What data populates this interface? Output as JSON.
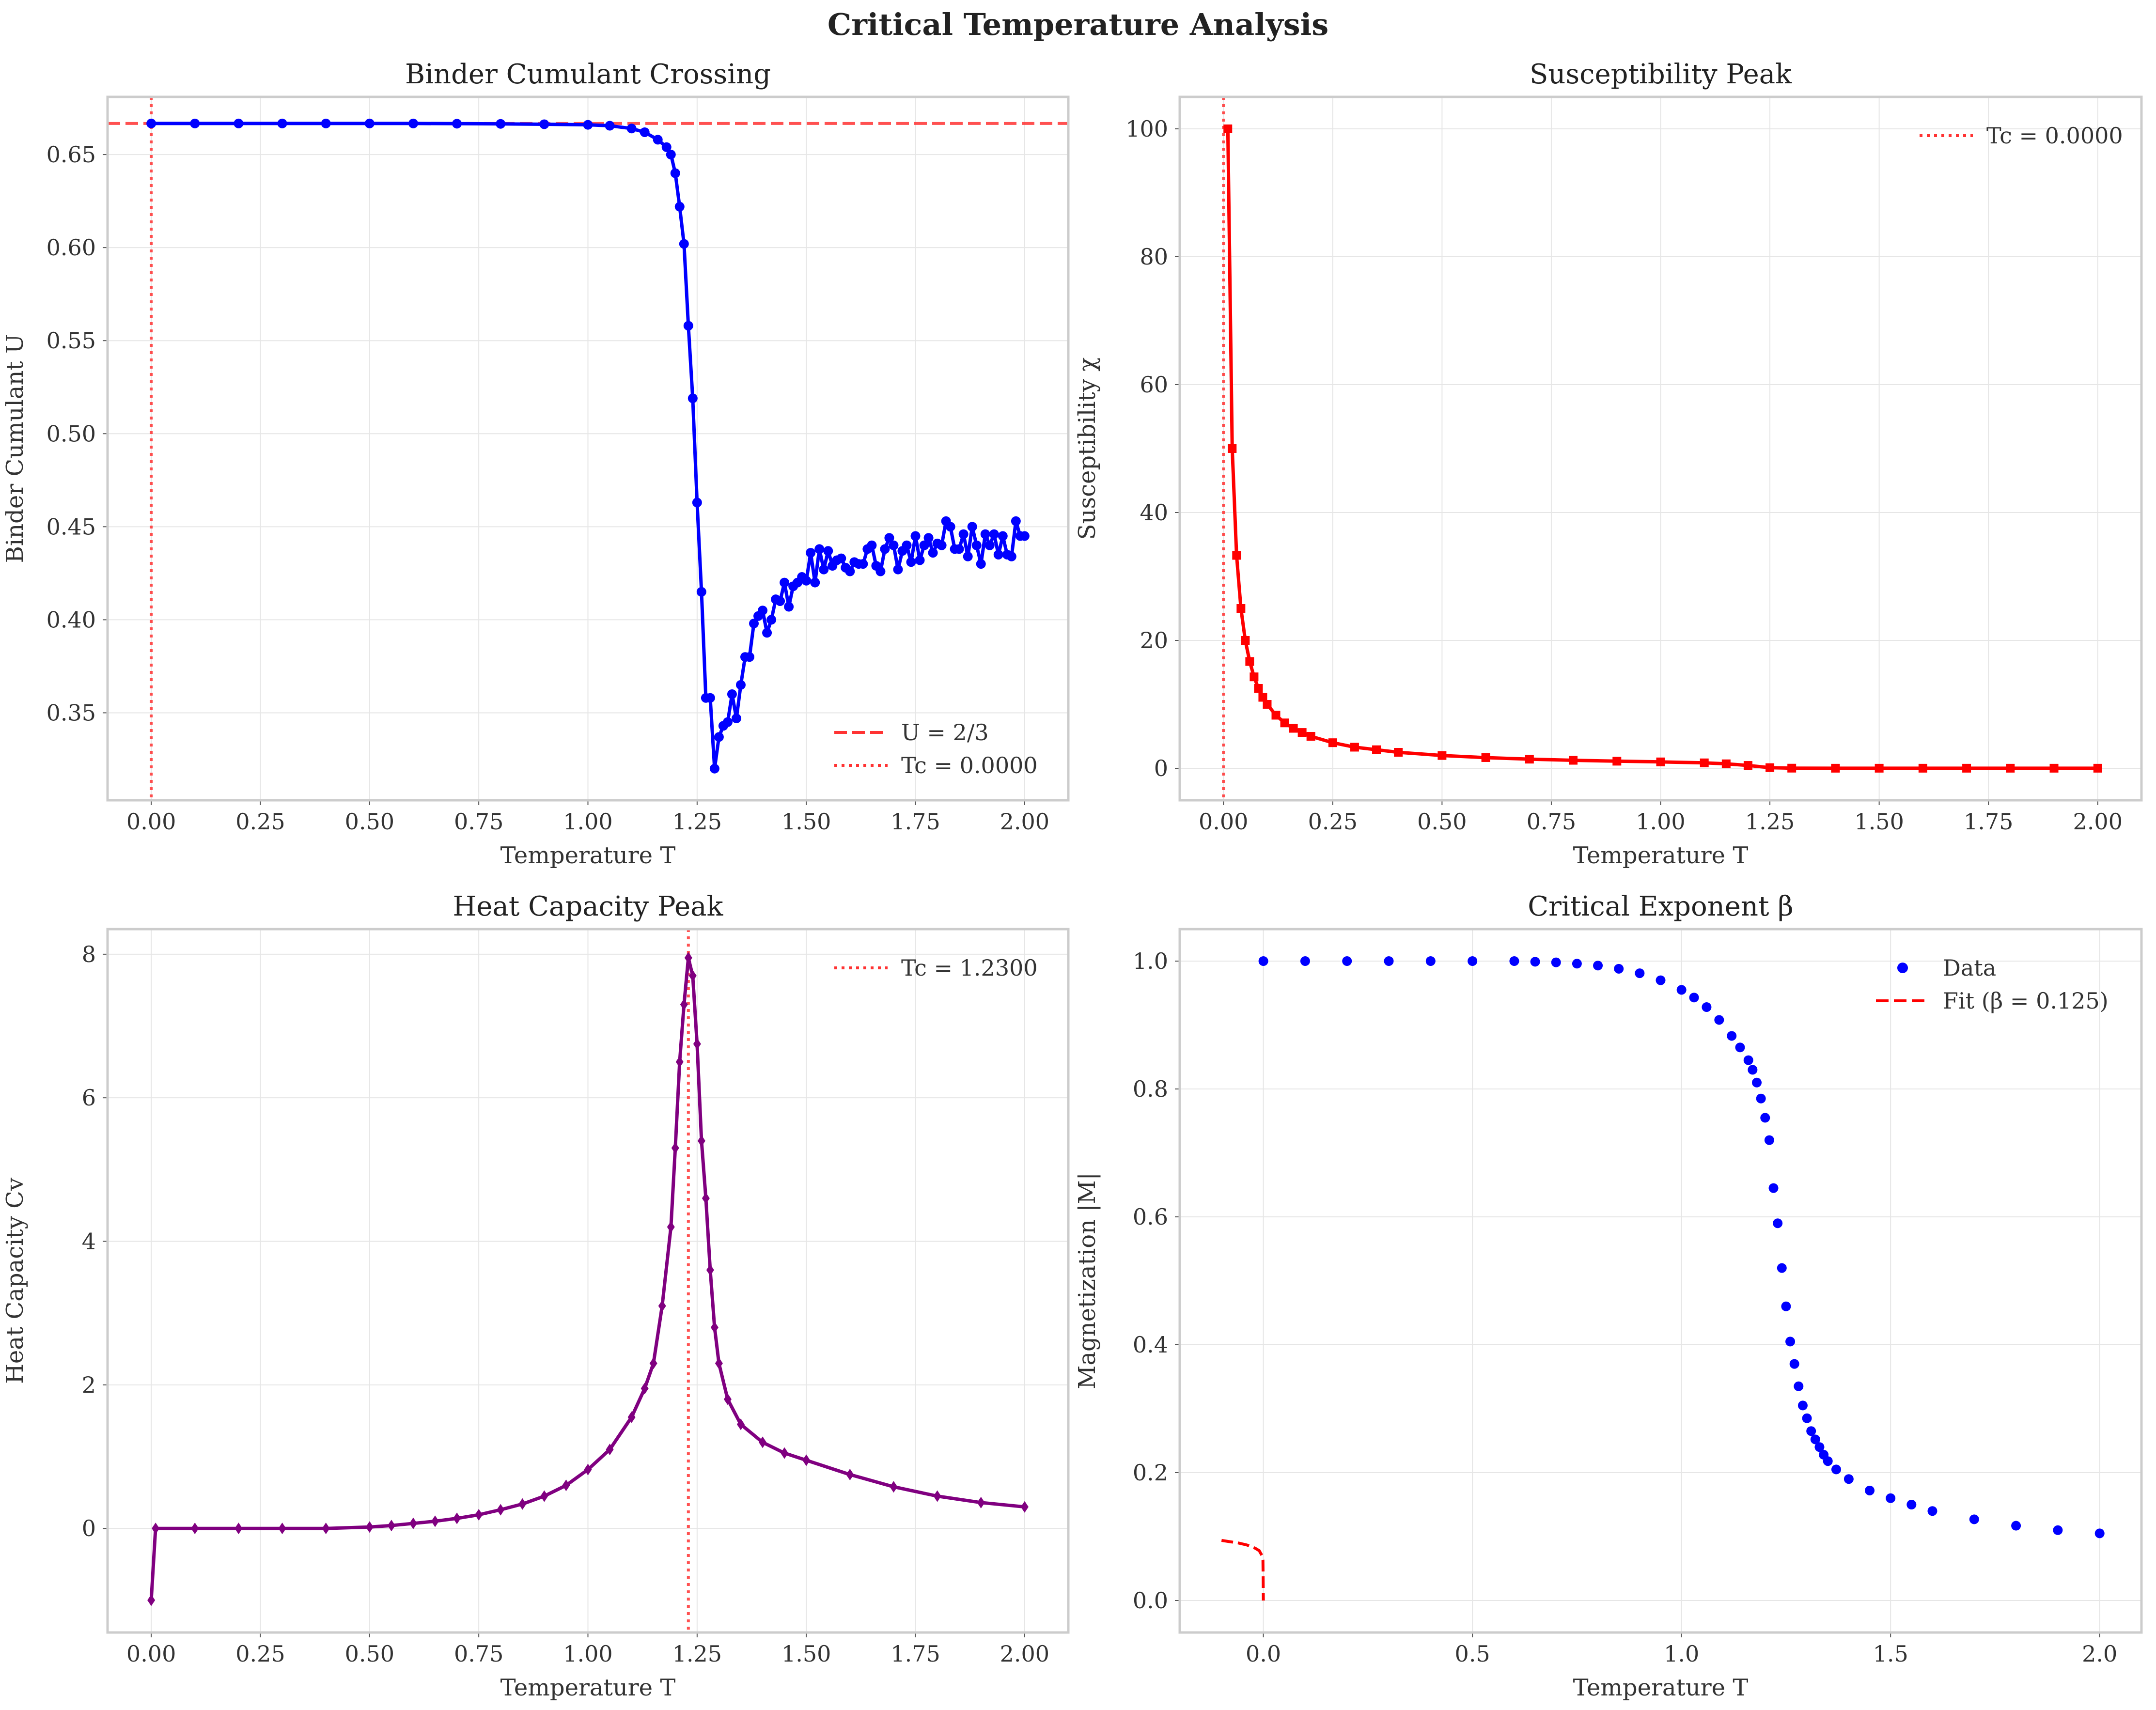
{
  "figure_title": "Critical Temperature Analysis",
  "colors": {
    "blue": "#0000ff",
    "red": "#ff0000",
    "purple": "#800080",
    "refline": "#ff3333",
    "grid": "#e6e6e6",
    "spine": "#cccccc"
  },
  "chart_data": [
    {
      "type": "line",
      "title": "Binder Cumulant Crossing",
      "xlabel": "Temperature T",
      "ylabel": "Binder Cumulant U",
      "xlim": [
        -0.1,
        2.1
      ],
      "ylim": [
        0.303,
        0.681
      ],
      "xticks": [
        0,
        0.25,
        0.5,
        0.75,
        1.0,
        1.25,
        1.5,
        1.75,
        2.0
      ],
      "xtick_labels": [
        "0.00",
        "0.25",
        "0.50",
        "0.75",
        "1.00",
        "1.25",
        "1.50",
        "1.75",
        "2.00"
      ],
      "yticks": [
        0.35,
        0.4,
        0.45,
        0.5,
        0.55,
        0.6,
        0.65
      ],
      "ytick_labels": [
        "0.35",
        "0.40",
        "0.45",
        "0.50",
        "0.55",
        "0.60",
        "0.65"
      ],
      "grid": true,
      "legend_position": "lower-right",
      "series": [
        {
          "marker": "circle",
          "color": "#0000ff",
          "x": [
            0,
            0.1,
            0.2,
            0.3,
            0.4,
            0.5,
            0.6,
            0.7,
            0.8,
            0.9,
            1.0,
            1.05,
            1.1,
            1.13,
            1.16,
            1.18,
            1.19,
            1.2,
            1.21,
            1.22,
            1.23,
            1.24,
            1.25,
            1.26,
            1.27,
            1.28,
            1.29,
            1.3,
            1.31,
            1.32,
            1.33,
            1.34,
            1.35,
            1.36,
            1.37,
            1.38,
            1.39,
            1.4,
            1.41,
            1.42,
            1.43,
            1.44,
            1.45,
            1.46,
            1.47,
            1.48,
            1.49,
            1.5,
            1.51,
            1.52,
            1.53,
            1.54,
            1.55,
            1.56,
            1.57,
            1.58,
            1.59,
            1.6,
            1.61,
            1.62,
            1.63,
            1.64,
            1.65,
            1.66,
            1.67,
            1.68,
            1.69,
            1.7,
            1.71,
            1.72,
            1.73,
            1.74,
            1.75,
            1.76,
            1.77,
            1.78,
            1.79,
            1.8,
            1.81,
            1.82,
            1.83,
            1.84,
            1.85,
            1.86,
            1.87,
            1.88,
            1.89,
            1.9,
            1.91,
            1.92,
            1.93,
            1.94,
            1.95,
            1.96,
            1.97,
            1.98,
            1.99,
            2.0
          ],
          "y": [
            0.6667,
            0.6667,
            0.6667,
            0.6667,
            0.6667,
            0.6667,
            0.6667,
            0.6666,
            0.6665,
            0.6663,
            0.666,
            0.6655,
            0.664,
            0.662,
            0.658,
            0.654,
            0.65,
            0.64,
            0.622,
            0.602,
            0.558,
            0.519,
            0.463,
            0.415,
            0.358,
            0.358,
            0.32,
            0.337,
            0.343,
            0.345,
            0.36,
            0.347,
            0.365,
            0.38,
            0.38,
            0.398,
            0.402,
            0.405,
            0.393,
            0.4,
            0.411,
            0.41,
            0.42,
            0.407,
            0.418,
            0.42,
            0.423,
            0.421,
            0.436,
            0.42,
            0.438,
            0.427,
            0.437,
            0.429,
            0.432,
            0.433,
            0.428,
            0.426,
            0.431,
            0.43,
            0.43,
            0.438,
            0.44,
            0.429,
            0.426,
            0.438,
            0.444,
            0.44,
            0.427,
            0.437,
            0.44,
            0.431,
            0.445,
            0.432,
            0.44,
            0.444,
            0.436,
            0.441,
            0.44,
            0.453,
            0.45,
            0.438,
            0.438,
            0.446,
            0.434,
            0.45,
            0.44,
            0.43,
            0.446,
            0.44,
            0.446,
            0.435,
            0.445,
            0.435,
            0.434,
            0.453,
            0.445,
            0.445
          ]
        }
      ],
      "hlines": [
        {
          "y": 0.6667,
          "style": "dashed",
          "color": "#ff3333",
          "label": "U = 2/3"
        }
      ],
      "vlines": [
        {
          "x": 0.0,
          "style": "dotted",
          "color": "#ff3333",
          "label": "Tc = 0.0000"
        }
      ]
    },
    {
      "type": "line",
      "title": "Susceptibility Peak",
      "xlabel": "Temperature T",
      "ylabel": "Susceptibility χ",
      "xlim": [
        -0.1,
        2.1
      ],
      "ylim": [
        -5,
        105
      ],
      "xticks": [
        0,
        0.25,
        0.5,
        0.75,
        1.0,
        1.25,
        1.5,
        1.75,
        2.0
      ],
      "xtick_labels": [
        "0.00",
        "0.25",
        "0.50",
        "0.75",
        "1.00",
        "1.25",
        "1.50",
        "1.75",
        "2.00"
      ],
      "yticks": [
        0,
        20,
        40,
        60,
        80,
        100
      ],
      "ytick_labels": [
        "0",
        "20",
        "40",
        "60",
        "80",
        "100"
      ],
      "grid": true,
      "legend_position": "upper-right",
      "series": [
        {
          "marker": "square",
          "color": "#ff0000",
          "x": [
            0.01,
            0.02,
            0.03,
            0.04,
            0.05,
            0.06,
            0.07,
            0.08,
            0.09,
            0.1,
            0.12,
            0.14,
            0.16,
            0.18,
            0.2,
            0.25,
            0.3,
            0.35,
            0.4,
            0.5,
            0.6,
            0.7,
            0.8,
            0.9,
            1.0,
            1.1,
            1.15,
            1.2,
            1.25,
            1.3,
            1.4,
            1.5,
            1.6,
            1.7,
            1.8,
            1.9,
            2.0
          ],
          "y": [
            100,
            50,
            33.3,
            25,
            20,
            16.7,
            14.3,
            12.5,
            11.1,
            10,
            8.3,
            7.1,
            6.25,
            5.6,
            5,
            4,
            3.3,
            2.9,
            2.5,
            2,
            1.67,
            1.43,
            1.25,
            1.11,
            1.0,
            0.85,
            0.7,
            0.45,
            0.1,
            0.02,
            0.01,
            0.01,
            0.01,
            0.01,
            0.01,
            0.01,
            0.01
          ]
        }
      ],
      "vlines": [
        {
          "x": 0.0,
          "style": "dotted",
          "color": "#ff3333",
          "label": "Tc = 0.0000"
        }
      ]
    },
    {
      "type": "line",
      "title": "Heat Capacity Peak",
      "xlabel": "Temperature T",
      "ylabel": "Heat Capacity Cv",
      "xlim": [
        -0.1,
        2.1
      ],
      "ylim": [
        -1.45,
        8.35
      ],
      "xticks": [
        0,
        0.25,
        0.5,
        0.75,
        1.0,
        1.25,
        1.5,
        1.75,
        2.0
      ],
      "xtick_labels": [
        "0.00",
        "0.25",
        "0.50",
        "0.75",
        "1.00",
        "1.25",
        "1.50",
        "1.75",
        "2.00"
      ],
      "yticks": [
        0,
        2,
        4,
        6,
        8
      ],
      "ytick_labels": [
        "0",
        "2",
        "4",
        "6",
        "8"
      ],
      "grid": true,
      "legend_position": "upper-right",
      "series": [
        {
          "marker": "diamond",
          "color": "#800080",
          "x": [
            0.0,
            0.01,
            0.1,
            0.2,
            0.3,
            0.4,
            0.5,
            0.55,
            0.6,
            0.65,
            0.7,
            0.75,
            0.8,
            0.85,
            0.9,
            0.95,
            1.0,
            1.05,
            1.1,
            1.13,
            1.15,
            1.17,
            1.19,
            1.2,
            1.21,
            1.22,
            1.23,
            1.24,
            1.25,
            1.26,
            1.27,
            1.28,
            1.29,
            1.3,
            1.32,
            1.35,
            1.4,
            1.45,
            1.5,
            1.6,
            1.7,
            1.8,
            1.9,
            2.0
          ],
          "y": [
            -1.0,
            0.0,
            0.0,
            0.0,
            0.0,
            0.0,
            0.02,
            0.04,
            0.07,
            0.1,
            0.14,
            0.19,
            0.26,
            0.34,
            0.45,
            0.6,
            0.82,
            1.1,
            1.55,
            1.95,
            2.3,
            3.1,
            4.2,
            5.3,
            6.5,
            7.3,
            7.95,
            7.7,
            6.75,
            5.4,
            4.6,
            3.6,
            2.8,
            2.3,
            1.8,
            1.45,
            1.2,
            1.05,
            0.95,
            0.75,
            0.58,
            0.45,
            0.36,
            0.3
          ]
        }
      ],
      "vlines": [
        {
          "x": 1.23,
          "style": "dotted",
          "color": "#ff3333",
          "label": "Tc = 1.2300"
        }
      ]
    },
    {
      "type": "scatter",
      "title": "Critical Exponent β",
      "xlabel": "Temperature T",
      "ylabel": "Magnetization |M|",
      "xlim": [
        -0.2,
        2.1
      ],
      "ylim": [
        -0.05,
        1.05
      ],
      "xticks": [
        0,
        0.5,
        1.0,
        1.5,
        2.0
      ],
      "xtick_labels": [
        "0.0",
        "0.5",
        "1.0",
        "1.5",
        "2.0"
      ],
      "yticks": [
        0,
        0.2,
        0.4,
        0.6,
        0.8,
        1.0
      ],
      "ytick_labels": [
        "0.0",
        "0.2",
        "0.4",
        "0.6",
        "0.8",
        "1.0"
      ],
      "grid": true,
      "legend_position": "upper-right",
      "series": [
        {
          "name": "Data",
          "marker": "circle",
          "color": "#0000ff",
          "x": [
            0.0,
            0.1,
            0.2,
            0.3,
            0.4,
            0.5,
            0.6,
            0.65,
            0.7,
            0.75,
            0.8,
            0.85,
            0.9,
            0.95,
            1.0,
            1.03,
            1.06,
            1.09,
            1.12,
            1.14,
            1.16,
            1.17,
            1.18,
            1.19,
            1.2,
            1.21,
            1.22,
            1.23,
            1.24,
            1.25,
            1.26,
            1.27,
            1.28,
            1.29,
            1.3,
            1.31,
            1.32,
            1.33,
            1.34,
            1.35,
            1.37,
            1.4,
            1.45,
            1.5,
            1.55,
            1.6,
            1.7,
            1.8,
            1.9,
            2.0
          ],
          "y": [
            1.0,
            1.0,
            1.0,
            1.0,
            1.0,
            1.0,
            1.0,
            0.999,
            0.998,
            0.996,
            0.993,
            0.988,
            0.981,
            0.97,
            0.955,
            0.943,
            0.928,
            0.908,
            0.883,
            0.865,
            0.845,
            0.83,
            0.81,
            0.785,
            0.755,
            0.72,
            0.645,
            0.59,
            0.52,
            0.46,
            0.405,
            0.37,
            0.335,
            0.305,
            0.285,
            0.265,
            0.252,
            0.24,
            0.228,
            0.218,
            0.205,
            0.19,
            0.172,
            0.16,
            0.15,
            0.14,
            0.127,
            0.117,
            0.11,
            0.105
          ]
        },
        {
          "name": "Fit (β = 0.125)",
          "style": "dashed",
          "color": "#ff0000",
          "x": [
            -0.1,
            -0.08,
            -0.06,
            -0.04,
            -0.02,
            -0.01,
            -0.003,
            -0.001,
            0.0
          ],
          "y": [
            0.094,
            0.092,
            0.09,
            0.087,
            0.082,
            0.078,
            0.07,
            0.063,
            0.0
          ]
        }
      ]
    }
  ]
}
